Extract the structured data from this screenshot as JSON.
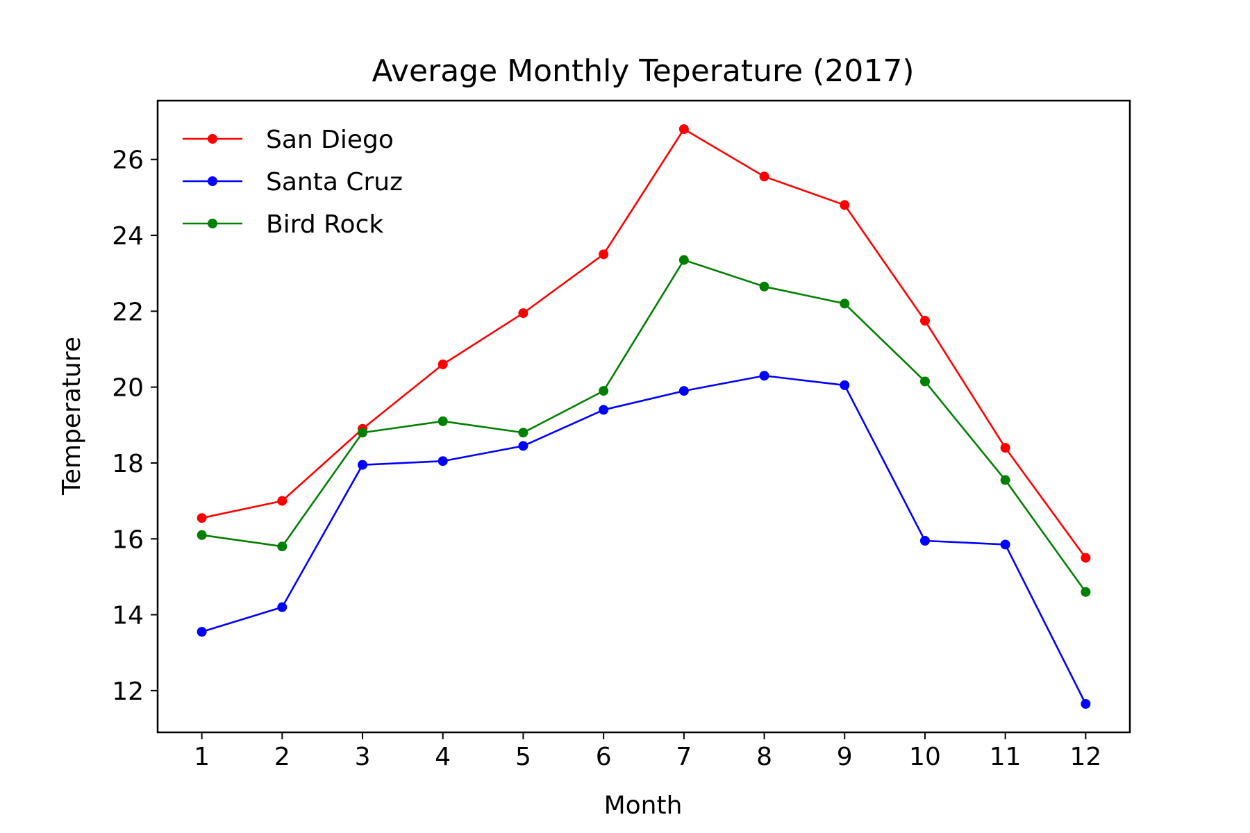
{
  "chart_data": {
    "type": "line",
    "title": "Average Monthly Teperature (2017)",
    "xlabel": "Month",
    "ylabel": "Temperature",
    "x": [
      1,
      2,
      3,
      4,
      5,
      6,
      7,
      8,
      9,
      10,
      11,
      12
    ],
    "xlim": [
      0.45,
      12.55
    ],
    "ylim": [
      10.9,
      27.55
    ],
    "yticks": [
      12,
      14,
      16,
      18,
      20,
      22,
      24,
      26
    ],
    "grid": false,
    "legend_position": "top-left",
    "series": [
      {
        "name": "San Diego",
        "color": "#ff0000",
        "values": [
          16.55,
          17.0,
          18.9,
          20.6,
          21.95,
          23.5,
          26.8,
          25.55,
          24.8,
          21.75,
          18.4,
          15.5
        ]
      },
      {
        "name": "Santa Cruz",
        "color": "#0000ff",
        "values": [
          13.55,
          14.2,
          17.95,
          18.05,
          18.45,
          19.4,
          19.9,
          20.3,
          20.05,
          15.95,
          15.85,
          11.65
        ]
      },
      {
        "name": "Bird Rock",
        "color": "#008000",
        "values": [
          16.1,
          15.8,
          18.8,
          19.1,
          18.8,
          19.9,
          23.35,
          22.65,
          22.2,
          20.15,
          17.55,
          14.6
        ]
      }
    ]
  }
}
